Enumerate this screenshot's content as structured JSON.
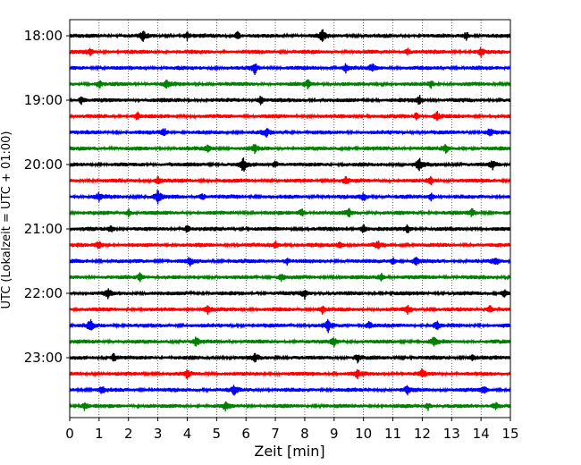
{
  "chart_data": {
    "type": "line",
    "xlabel": "Zeit  [min]",
    "ylabel": "UTC (Lokalzeit = UTC + 01:00)",
    "xlim": [
      0,
      15
    ],
    "x_ticks": [
      0,
      1,
      2,
      3,
      4,
      5,
      6,
      7,
      8,
      9,
      10,
      11,
      12,
      13,
      14,
      15
    ],
    "y_tick_labels": [
      "18:00",
      "19:00",
      "20:00",
      "21:00",
      "22:00",
      "23:00"
    ],
    "minutes_per_trace": 15,
    "grid": "vertical-dotted",
    "trace_colors": [
      "#000000",
      "#ff0000",
      "#0000ff",
      "#008000"
    ],
    "traces": [
      {
        "start": "18:00",
        "color": "#000000",
        "events": [
          [
            2.5,
            1.2
          ],
          [
            4.0,
            1.0
          ],
          [
            5.7,
            1.2
          ],
          [
            8.6,
            1.6
          ],
          [
            13.5,
            1.0
          ]
        ]
      },
      {
        "start": "18:15",
        "color": "#ff0000",
        "events": [
          [
            0.7,
            1.0
          ],
          [
            11.5,
            1.0
          ],
          [
            14.0,
            1.0
          ]
        ]
      },
      {
        "start": "18:30",
        "color": "#0000ff",
        "events": [
          [
            6.3,
            1.5
          ],
          [
            9.4,
            1.0
          ],
          [
            10.3,
            1.0
          ]
        ]
      },
      {
        "start": "18:45",
        "color": "#008000",
        "events": [
          [
            1.0,
            1.0
          ],
          [
            3.3,
            1.0
          ],
          [
            8.1,
            1.0
          ],
          [
            12.3,
            1.0
          ]
        ]
      },
      {
        "start": "19:00",
        "color": "#000000",
        "events": [
          [
            0.4,
            1.0
          ],
          [
            6.5,
            1.0
          ],
          [
            11.9,
            1.2
          ]
        ]
      },
      {
        "start": "19:15",
        "color": "#ff0000",
        "events": [
          [
            2.3,
            1.0
          ],
          [
            11.8,
            1.0
          ],
          [
            12.5,
            1.3
          ]
        ]
      },
      {
        "start": "19:30",
        "color": "#0000ff",
        "events": [
          [
            3.2,
            1.2
          ],
          [
            6.7,
            1.0
          ],
          [
            14.3,
            1.0
          ]
        ]
      },
      {
        "start": "19:45",
        "color": "#008000",
        "events": [
          [
            4.7,
            1.0
          ],
          [
            6.3,
            1.0
          ],
          [
            12.8,
            1.0
          ]
        ]
      },
      {
        "start": "20:00",
        "color": "#000000",
        "events": [
          [
            5.9,
            2.2
          ],
          [
            7.0,
            1.0
          ],
          [
            11.9,
            1.8
          ],
          [
            14.4,
            1.0
          ]
        ]
      },
      {
        "start": "20:15",
        "color": "#ff0000",
        "events": [
          [
            3.0,
            1.0
          ],
          [
            9.4,
            1.0
          ],
          [
            12.3,
            1.0
          ]
        ]
      },
      {
        "start": "20:30",
        "color": "#0000ff",
        "events": [
          [
            1.0,
            1.0
          ],
          [
            3.0,
            1.8
          ],
          [
            4.5,
            1.0
          ],
          [
            10.0,
            1.0
          ],
          [
            12.3,
            1.0
          ]
        ]
      },
      {
        "start": "20:45",
        "color": "#008000",
        "events": [
          [
            2.0,
            1.0
          ],
          [
            7.9,
            1.0
          ],
          [
            9.5,
            1.0
          ],
          [
            13.7,
            1.0
          ]
        ]
      },
      {
        "start": "21:00",
        "color": "#000000",
        "events": [
          [
            1.4,
            1.0
          ],
          [
            4.0,
            1.0
          ],
          [
            10.0,
            1.2
          ],
          [
            11.5,
            1.0
          ]
        ]
      },
      {
        "start": "21:15",
        "color": "#ff0000",
        "events": [
          [
            1.0,
            1.0
          ],
          [
            7.0,
            1.0
          ],
          [
            9.2,
            1.0
          ],
          [
            10.5,
            1.0
          ]
        ]
      },
      {
        "start": "21:30",
        "color": "#0000ff",
        "events": [
          [
            4.1,
            1.0
          ],
          [
            7.4,
            1.0
          ],
          [
            11.0,
            1.0
          ],
          [
            11.8,
            1.0
          ],
          [
            14.5,
            1.0
          ]
        ]
      },
      {
        "start": "21:45",
        "color": "#008000",
        "events": [
          [
            2.4,
            1.0
          ],
          [
            7.2,
            1.0
          ],
          [
            10.6,
            1.0
          ]
        ]
      },
      {
        "start": "22:00",
        "color": "#000000",
        "events": [
          [
            1.3,
            1.0
          ],
          [
            8.0,
            1.2
          ],
          [
            14.8,
            1.0
          ]
        ]
      },
      {
        "start": "22:15",
        "color": "#ff0000",
        "events": [
          [
            4.7,
            1.0
          ],
          [
            8.6,
            1.0
          ],
          [
            11.5,
            1.0
          ],
          [
            14.3,
            1.0
          ]
        ]
      },
      {
        "start": "22:30",
        "color": "#0000ff",
        "events": [
          [
            0.7,
            1.4
          ],
          [
            8.8,
            1.5
          ],
          [
            10.2,
            1.0
          ],
          [
            12.5,
            1.0
          ]
        ]
      },
      {
        "start": "22:45",
        "color": "#008000",
        "events": [
          [
            4.3,
            1.0
          ],
          [
            9.0,
            1.0
          ],
          [
            12.4,
            1.0
          ]
        ]
      },
      {
        "start": "23:00",
        "color": "#000000",
        "events": [
          [
            1.5,
            1.0
          ],
          [
            6.3,
            1.0
          ],
          [
            9.8,
            1.0
          ],
          [
            13.7,
            1.0
          ]
        ]
      },
      {
        "start": "23:15",
        "color": "#ff0000",
        "events": [
          [
            4.0,
            1.0
          ],
          [
            9.8,
            1.0
          ],
          [
            12.0,
            1.0
          ]
        ]
      },
      {
        "start": "23:30",
        "color": "#0000ff",
        "events": [
          [
            1.1,
            1.0
          ],
          [
            5.6,
            1.2
          ],
          [
            11.5,
            1.0
          ],
          [
            14.1,
            1.0
          ]
        ]
      },
      {
        "start": "23:45",
        "color": "#008000",
        "events": [
          [
            0.5,
            1.0
          ],
          [
            5.3,
            1.0
          ],
          [
            12.2,
            1.0
          ],
          [
            14.5,
            1.2
          ]
        ]
      }
    ]
  }
}
